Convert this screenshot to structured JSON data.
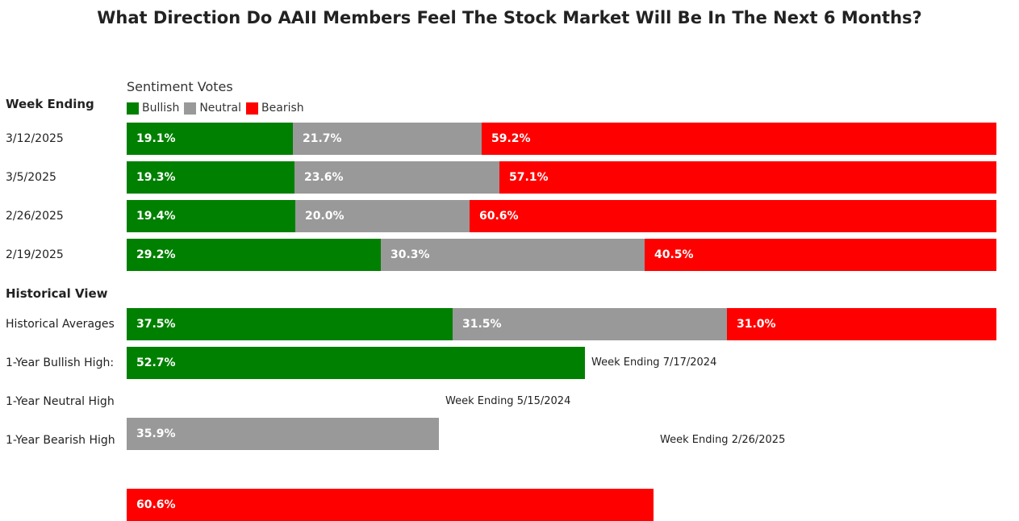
{
  "colors": {
    "bullish": "#008000",
    "neutral": "#999999",
    "bearish": "#ff0000"
  },
  "legend_title": "Sentiment Votes",
  "legend": [
    {
      "key": "bullish",
      "label": "Bullish"
    },
    {
      "key": "neutral",
      "label": "Neutral"
    },
    {
      "key": "bearish",
      "label": "Bearish"
    }
  ],
  "week_section_label": "Week Ending",
  "historical_section_label": "Historical View",
  "chart_data": {
    "type": "bar",
    "orientation": "horizontal-stacked-percent",
    "title": "What Direction Do AAII Members Feel The Stock Market Will Be In The Next 6 Months?",
    "units": "%",
    "series": [
      {
        "name": "Bullish"
      },
      {
        "name": "Neutral"
      },
      {
        "name": "Bearish"
      }
    ],
    "weekly": [
      {
        "label": "3/12/2025",
        "values": [
          19.1,
          21.7,
          59.2
        ],
        "value_labels": [
          "19.1%",
          "21.7%",
          "59.2%"
        ]
      },
      {
        "label": "3/5/2025",
        "values": [
          19.3,
          23.6,
          57.1
        ],
        "value_labels": [
          "19.3%",
          "23.6%",
          "57.1%"
        ]
      },
      {
        "label": "2/26/2025",
        "values": [
          19.4,
          20.0,
          60.6
        ],
        "value_labels": [
          "19.4%",
          "20.0%",
          "60.6%"
        ]
      },
      {
        "label": "2/19/2025",
        "values": [
          29.2,
          30.3,
          40.5
        ],
        "value_labels": [
          "29.2%",
          "30.3%",
          "40.5%"
        ]
      }
    ],
    "historical": [
      {
        "label": "Historical Averages",
        "values": [
          37.5,
          31.5,
          31.0
        ],
        "value_labels": [
          "37.5%",
          "31.5%",
          "31.0%"
        ]
      },
      {
        "label": "1-Year Bullish High:",
        "series": "bullish",
        "value": 52.7,
        "value_label": "52.7%",
        "note": "Week Ending 7/17/2024"
      },
      {
        "label": "1-Year Neutral High",
        "series": "neutral",
        "value": 35.9,
        "value_label": "35.9%",
        "note": "Week Ending 5/15/2024"
      },
      {
        "label": "1-Year Bearish High",
        "series": "bearish",
        "value": 60.6,
        "value_label": "60.6%",
        "note": "Week Ending 2/26/2025"
      }
    ]
  }
}
